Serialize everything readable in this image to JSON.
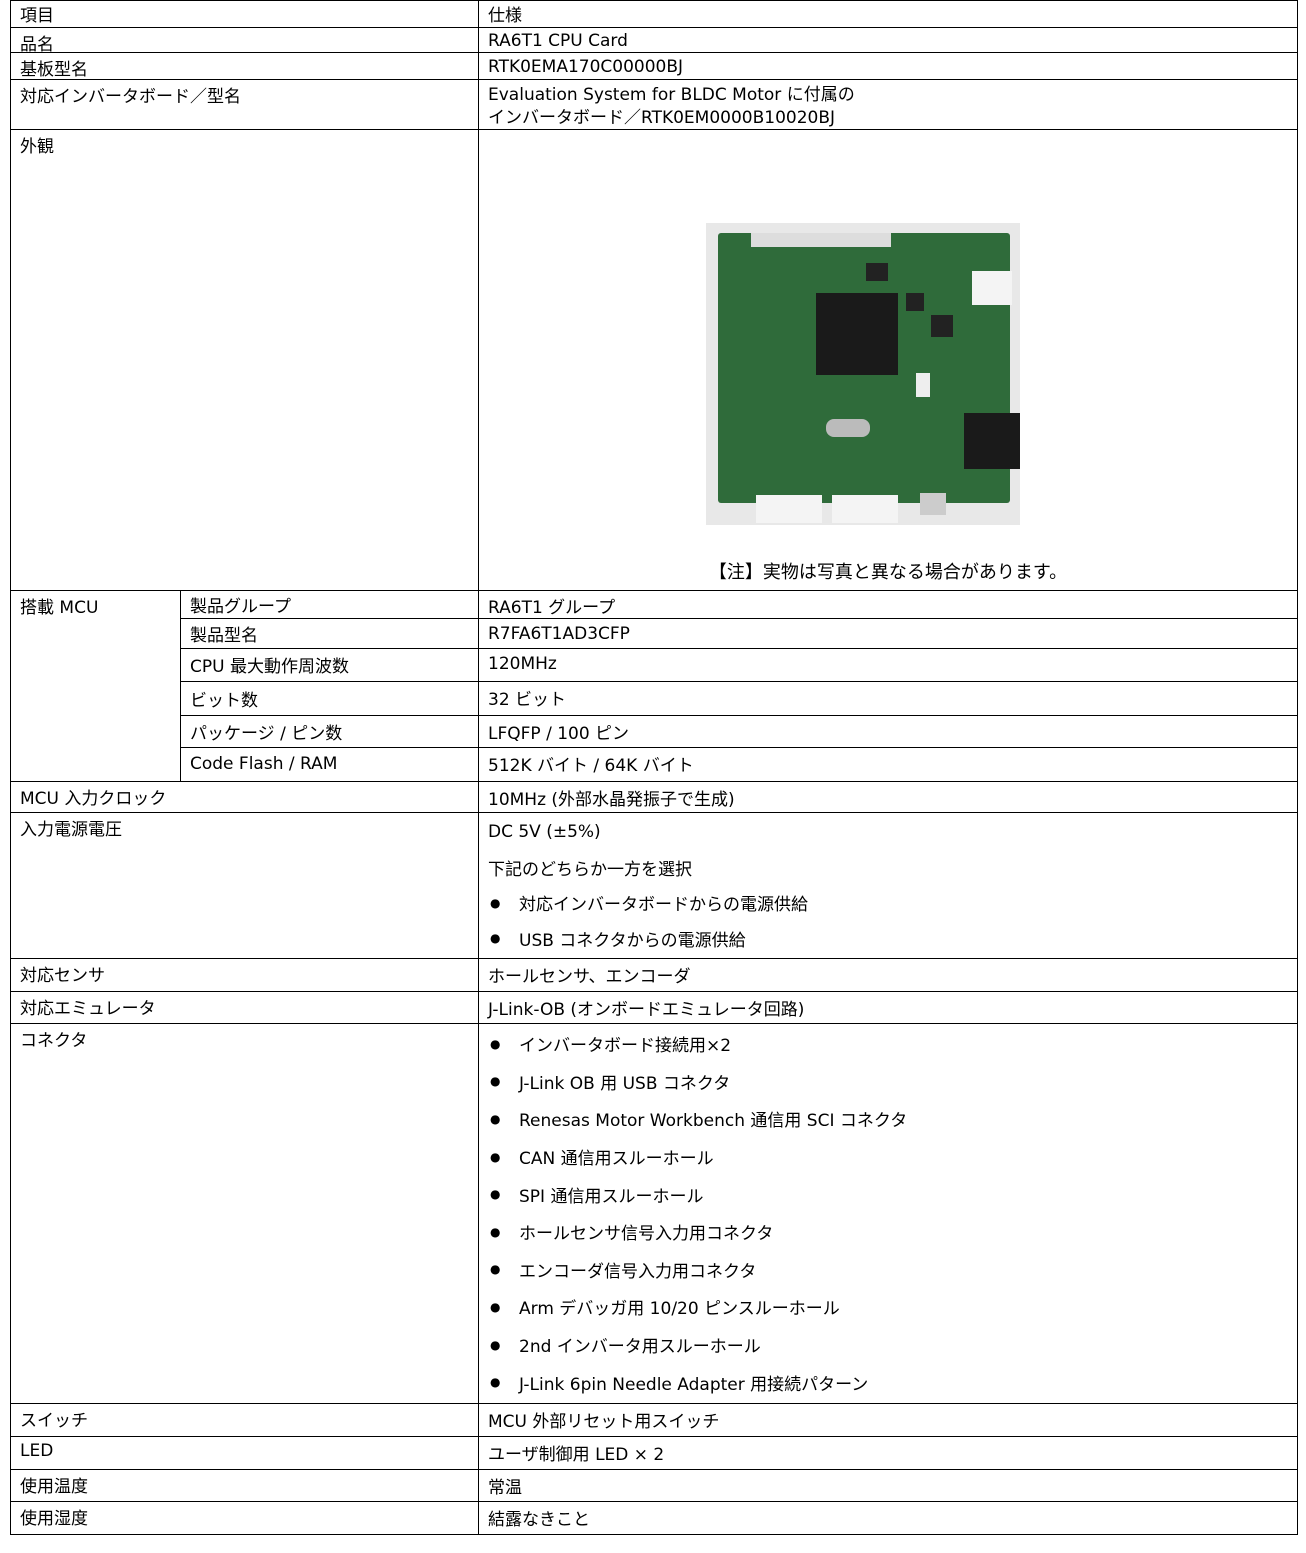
{
  "table": {
    "header": [
      "項目",
      "仕様"
    ],
    "rows": [
      {
        "label": "品名",
        "value": [
          "RA6T1 CPU Card"
        ]
      },
      {
        "label": "基板型名",
        "value": [
          "RTK0EMA170C00000BJ"
        ]
      },
      {
        "label": "対応インバータボード／型名",
        "value": [
          "Evaluation System for BLDC Motor に付属の",
          "インバータボード／RTK0EM0000B10020BJ"
        ]
      },
      {
        "label": "外観",
        "caption": "【注】実物は写真と異なる場合があります。"
      },
      {
        "label": "搭載 MCU",
        "sub": [
          {
            "label": "製品グループ",
            "value": [
              "RA6T1 グループ"
            ]
          },
          {
            "label": "製品型名",
            "value": [
              "R7FA6T1AD3CFP"
            ]
          },
          {
            "label": "CPU 最大動作周波数",
            "value": [
              "120MHz"
            ]
          },
          {
            "label": "ビット数",
            "value": [
              "32 ビット"
            ]
          },
          {
            "label": "パッケージ / ピン数",
            "value": [
              "LFQFP / 100 ピン"
            ]
          },
          {
            "label": "Code Flash / RAM",
            "value": [
              "512K バイト / 64K バイト"
            ]
          }
        ]
      },
      {
        "label": "MCU 入力クロック",
        "value": [
          "10MHz (外部水晶発振子で生成)"
        ]
      },
      {
        "label": "入力電源電圧",
        "value": [
          "DC 5V (±5%)",
          "下記のどちらか一方を選択"
        ],
        "bullets": [
          "対応インバータボードからの電源供給",
          "USB コネクタからの電源供給"
        ]
      },
      {
        "label": "対応センサ",
        "value": [
          "ホールセンサ、エンコーダ"
        ]
      },
      {
        "label": "対応エミュレータ",
        "value": [
          "J-Link-OB (オンボードエミュレータ回路)"
        ]
      },
      {
        "label": "コネクタ",
        "bullets": [
          "インバータボード接続用×2",
          "J-Link OB 用 USB コネクタ",
          "Renesas Motor Workbench 通信用 SCI コネクタ",
          "CAN 通信用スルーホール",
          "SPI 通信用スルーホール",
          "ホールセンサ信号入力用コネクタ",
          "エンコーダ信号入力用コネクタ",
          "Arm デバッガ用 10/20 ピンスルーホール",
          "2nd インバータ用スルーホール",
          "J-Link 6pin Needle Adapter 用接続パターン"
        ]
      },
      {
        "label": "スイッチ",
        "value": [
          "MCU 外部リセット用スイッチ"
        ]
      },
      {
        "label": "LED",
        "value": [
          "ユーザ制御用 LED × 2"
        ]
      },
      {
        "label": "使用温度",
        "value": [
          "常温"
        ]
      },
      {
        "label": "使用湿度",
        "value": [
          "結露なきこと"
        ]
      }
    ]
  }
}
